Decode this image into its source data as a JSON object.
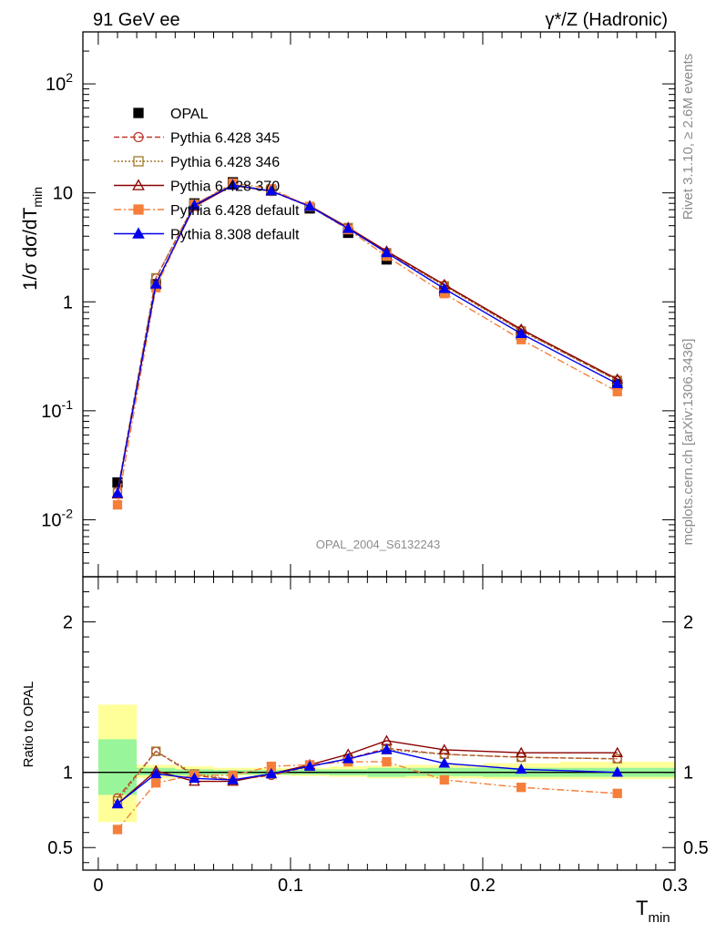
{
  "header": {
    "left_label": "91 GeV ee",
    "right_label": "γ*/Z (Hadronic)"
  },
  "side_labels": {
    "rivet": "Rivet 3.1.10, ≥ 2.6M events",
    "source": "mcplots.cern.ch [arXiv:1306.3436]"
  },
  "analysis_id": "OPAL_2004_S6132243",
  "chart_data": [
    {
      "panel": "main",
      "type": "scatter",
      "ylabel": "1/σ dσ/dT_min",
      "yscale": "log",
      "ylim": [
        0.003,
        300
      ],
      "xlim": [
        -0.008,
        0.3
      ],
      "ytick_labels": [
        "10^-2",
        "10^-1",
        "1",
        "10",
        "10^2"
      ],
      "legend_position": "top-left",
      "x": [
        0.01,
        0.03,
        0.05,
        0.07,
        0.09,
        0.11,
        0.13,
        0.15,
        0.18,
        0.22,
        0.27
      ],
      "series": [
        {
          "name": "OPAL",
          "color": "#000000",
          "marker": "filled-square",
          "values": [
            0.022,
            1.45,
            8.0,
            12.5,
            10.5,
            7.2,
            4.3,
            2.45,
            1.25,
            0.5,
            0.175
          ]
        },
        {
          "name": "Pythia 6.428 345",
          "color": "#c0392b",
          "marker": "open-circle",
          "line": "dashed",
          "values": [
            0.0182,
            1.65,
            7.8,
            11.8,
            10.3,
            7.5,
            4.8,
            2.85,
            1.42,
            0.55,
            0.19
          ]
        },
        {
          "name": "Pythia 6.428 346",
          "color": "#a0782a",
          "marker": "open-square",
          "line": "dotted",
          "values": [
            0.0178,
            1.66,
            7.9,
            11.9,
            10.4,
            7.5,
            4.8,
            2.82,
            1.4,
            0.54,
            0.19
          ]
        },
        {
          "name": "Pythia 6.428 370",
          "color": "#8b0000",
          "marker": "open-triangle",
          "line": "solid",
          "values": [
            0.0172,
            1.47,
            7.5,
            11.7,
            10.4,
            7.6,
            4.8,
            2.92,
            1.44,
            0.56,
            0.195
          ]
        },
        {
          "name": "Pythia 6.428 default",
          "color": "#f57f3a",
          "marker": "filled-square",
          "line": "dashdot",
          "values": [
            0.0137,
            1.35,
            7.8,
            12.3,
            10.9,
            7.5,
            4.6,
            2.62,
            1.19,
            0.45,
            0.15
          ]
        },
        {
          "name": "Pythia 8.308 default",
          "color": "#0000ee",
          "marker": "filled-triangle",
          "line": "solid",
          "values": [
            0.0175,
            1.45,
            7.7,
            11.8,
            10.4,
            7.5,
            4.7,
            2.82,
            1.32,
            0.51,
            0.177
          ]
        }
      ]
    },
    {
      "panel": "ratio",
      "type": "scatter",
      "xlabel": "T_min",
      "ylabel": "Ratio to OPAL",
      "ylim": [
        0.35,
        2.3
      ],
      "xlim": [
        -0.008,
        0.3
      ],
      "xticks": [
        "0",
        "0.1",
        "0.2",
        "0.3"
      ],
      "yticks": [
        "0.5",
        "1",
        "2"
      ],
      "x": [
        0.01,
        0.03,
        0.05,
        0.07,
        0.09,
        0.11,
        0.13,
        0.15,
        0.18,
        0.22,
        0.27
      ],
      "bands": {
        "bin_edges": [
          0.0,
          0.02,
          0.04,
          0.06,
          0.08,
          0.1,
          0.12,
          0.14,
          0.16,
          0.2,
          0.24,
          0.3
        ],
        "inner": [
          [
            0.85,
            1.22
          ],
          [
            0.98,
            1.03
          ],
          [
            0.98,
            1.02
          ],
          [
            0.985,
            1.015
          ],
          [
            0.985,
            1.015
          ],
          [
            0.985,
            1.02
          ],
          [
            0.98,
            1.02
          ],
          [
            0.97,
            1.03
          ],
          [
            0.975,
            1.03
          ],
          [
            0.97,
            1.03
          ],
          [
            0.97,
            1.03
          ]
        ],
        "outer": [
          [
            0.67,
            1.45
          ],
          [
            0.96,
            1.05
          ],
          [
            0.97,
            1.04
          ],
          [
            0.98,
            1.03
          ],
          [
            0.98,
            1.03
          ],
          [
            0.975,
            1.03
          ],
          [
            0.97,
            1.04
          ],
          [
            0.96,
            1.045
          ],
          [
            0.96,
            1.05
          ],
          [
            0.955,
            1.06
          ],
          [
            0.955,
            1.07
          ]
        ],
        "inner_color": "#99f599",
        "outer_color": "#ffff99"
      },
      "series": [
        {
          "name": "Pythia 6.428 345",
          "color": "#c0392b",
          "marker": "open-circle",
          "line": "dashed",
          "values": [
            0.83,
            1.14,
            0.98,
            0.95,
            0.98,
            1.04,
            1.09,
            1.16,
            1.12,
            1.1,
            1.09
          ]
        },
        {
          "name": "Pythia 6.428 346",
          "color": "#a0782a",
          "marker": "open-square",
          "line": "dotted",
          "values": [
            0.81,
            1.14,
            0.99,
            0.95,
            0.99,
            1.04,
            1.09,
            1.15,
            1.12,
            1.1,
            1.09
          ]
        },
        {
          "name": "Pythia 6.428 370",
          "color": "#8b0000",
          "marker": "open-triangle",
          "line": "solid",
          "values": [
            0.79,
            1.01,
            0.94,
            0.94,
            0.99,
            1.05,
            1.12,
            1.21,
            1.15,
            1.13,
            1.13
          ]
        },
        {
          "name": "Pythia 6.428 default",
          "color": "#f57f3a",
          "marker": "filled-square",
          "line": "dashdot",
          "values": [
            0.62,
            0.93,
            0.98,
            0.98,
            1.04,
            1.05,
            1.07,
            1.07,
            0.95,
            0.9,
            0.86
          ]
        },
        {
          "name": "Pythia 8.308 default",
          "color": "#0000ee",
          "marker": "filled-triangle",
          "line": "solid",
          "values": [
            0.79,
            0.99,
            0.96,
            0.95,
            0.99,
            1.04,
            1.09,
            1.15,
            1.06,
            1.02,
            1.0
          ]
        }
      ]
    }
  ]
}
